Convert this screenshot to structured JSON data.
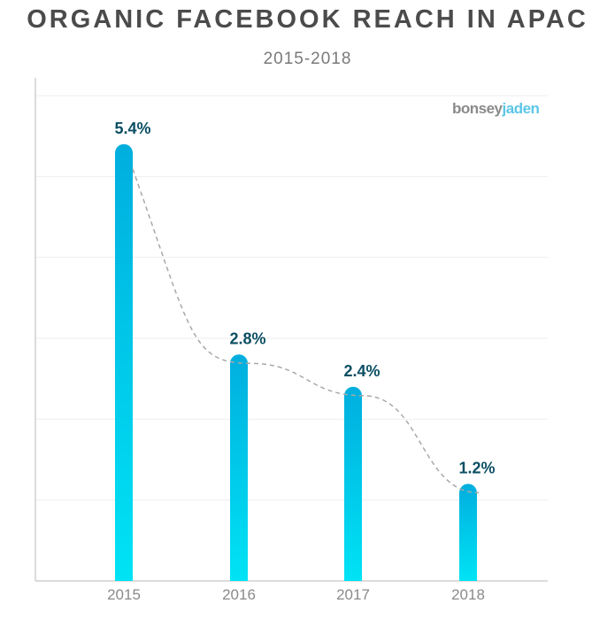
{
  "chart_data": {
    "type": "bar",
    "title": "ORGANIC FACEBOOK REACH IN APAC",
    "subtitle": "2015-2018",
    "categories": [
      "2015",
      "2016",
      "2017",
      "2018"
    ],
    "values": [
      5.4,
      2.8,
      2.4,
      1.2
    ],
    "value_labels": [
      "5.4%",
      "2.8%",
      "2.4%",
      "1.2%"
    ],
    "ylim": [
      0,
      6.0
    ],
    "grid": true,
    "trend_line": true,
    "colors": {
      "bar_top": "#00aede",
      "bar_bottom": "#00e3f5",
      "label": "#0b4f63",
      "trend": "#a8a8a8"
    }
  },
  "brand": {
    "part1": "bonsey",
    "part2": "jaden"
  }
}
